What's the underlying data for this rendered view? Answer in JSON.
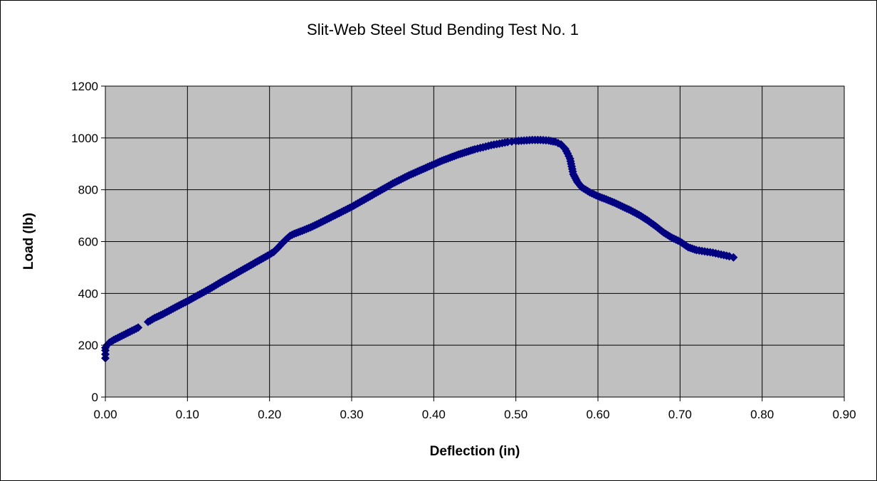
{
  "chart_data": {
    "type": "scatter",
    "title": "Slit-Web Steel Stud Bending Test No. 1",
    "xlabel": "Deflection (in)",
    "ylabel": "Load (lb)",
    "xlim": [
      0,
      0.9
    ],
    "ylim": [
      0,
      1200
    ],
    "xticks": [
      "0.00",
      "0.10",
      "0.20",
      "0.30",
      "0.40",
      "0.50",
      "0.60",
      "0.70",
      "0.80",
      "0.90"
    ],
    "yticks": [
      "0",
      "200",
      "400",
      "600",
      "800",
      "1000",
      "1200"
    ],
    "grid": true,
    "legend": "none",
    "plot_background": "#C0C0C0",
    "marker_color": "#000080",
    "marker": "diamond",
    "series": [
      {
        "x": [
          0.0,
          0.0,
          0.0,
          0.0,
          0.002,
          0.005,
          0.01,
          0.015,
          0.02,
          0.025,
          0.03,
          0.035,
          0.04,
          0.052,
          0.06,
          0.07,
          0.08,
          0.09,
          0.1,
          0.11,
          0.12,
          0.13,
          0.14,
          0.15,
          0.16,
          0.17,
          0.18,
          0.19,
          0.2,
          0.205,
          0.21,
          0.215,
          0.22,
          0.225,
          0.23,
          0.24,
          0.25,
          0.26,
          0.27,
          0.28,
          0.29,
          0.3,
          0.31,
          0.32,
          0.33,
          0.34,
          0.35,
          0.36,
          0.37,
          0.38,
          0.39,
          0.4,
          0.41,
          0.42,
          0.43,
          0.44,
          0.45,
          0.46,
          0.47,
          0.48,
          0.49,
          0.495,
          0.5,
          0.51,
          0.52,
          0.53,
          0.54,
          0.548,
          0.555,
          0.56,
          0.563,
          0.566,
          0.568,
          0.57,
          0.575,
          0.58,
          0.59,
          0.6,
          0.61,
          0.62,
          0.63,
          0.64,
          0.65,
          0.66,
          0.67,
          0.68,
          0.69,
          0.7,
          0.71,
          0.72,
          0.73,
          0.74,
          0.75,
          0.76,
          0.765
        ],
        "y": [
          150,
          165,
          180,
          190,
          200,
          210,
          220,
          228,
          236,
          244,
          252,
          260,
          268,
          290,
          305,
          320,
          337,
          354,
          370,
          388,
          405,
          423,
          442,
          460,
          478,
          496,
          514,
          532,
          550,
          560,
          575,
          592,
          608,
          622,
          630,
          642,
          655,
          670,
          686,
          702,
          718,
          734,
          752,
          770,
          788,
          806,
          824,
          840,
          856,
          870,
          884,
          898,
          912,
          924,
          936,
          946,
          956,
          964,
          972,
          978,
          984,
          986,
          988,
          990,
          992,
          992,
          990,
          985,
          975,
          958,
          940,
          920,
          890,
          860,
          830,
          810,
          790,
          775,
          763,
          750,
          735,
          720,
          703,
          683,
          660,
          635,
          615,
          600,
          578,
          567,
          562,
          557,
          550,
          543,
          539
        ]
      }
    ]
  }
}
